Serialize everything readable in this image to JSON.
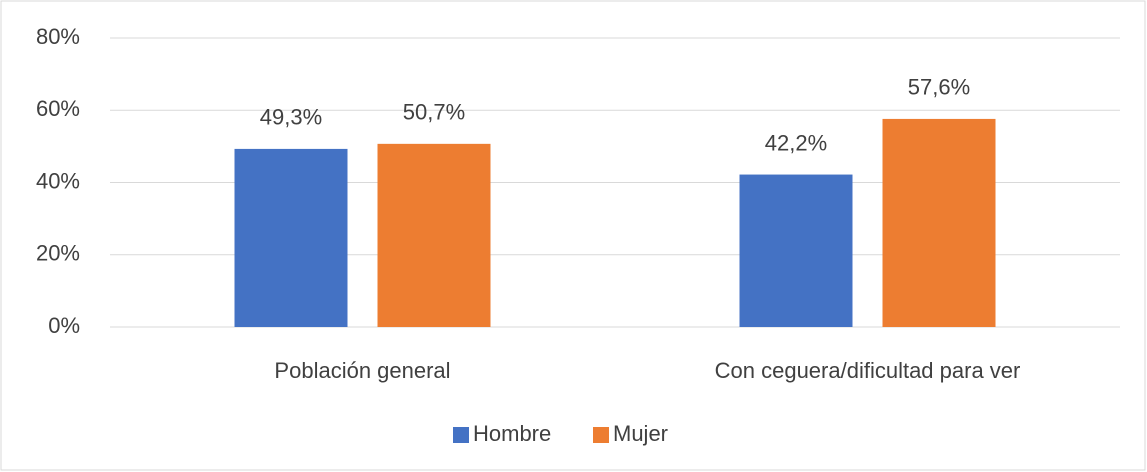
{
  "chart_data": {
    "type": "bar",
    "categories": [
      "Población general",
      "Con ceguera/dificultad para ver"
    ],
    "series": [
      {
        "name": "Hombre",
        "color": "#4472c4",
        "values": [
          49.3,
          42.2
        ],
        "value_labels": [
          "49,3%",
          "42,2%"
        ]
      },
      {
        "name": "Mujer",
        "color": "#ed7d31",
        "values": [
          50.7,
          57.6
        ],
        "value_labels": [
          "50,7%",
          "57,6%"
        ]
      }
    ],
    "ylim": [
      0,
      80
    ],
    "yticks": [
      {
        "value": 0,
        "label": "0%"
      },
      {
        "value": 20,
        "label": "20%"
      },
      {
        "value": 40,
        "label": "40%"
      },
      {
        "value": 60,
        "label": "60%"
      },
      {
        "value": 80,
        "label": "80%"
      }
    ],
    "grid": true,
    "legend": "bottom"
  }
}
